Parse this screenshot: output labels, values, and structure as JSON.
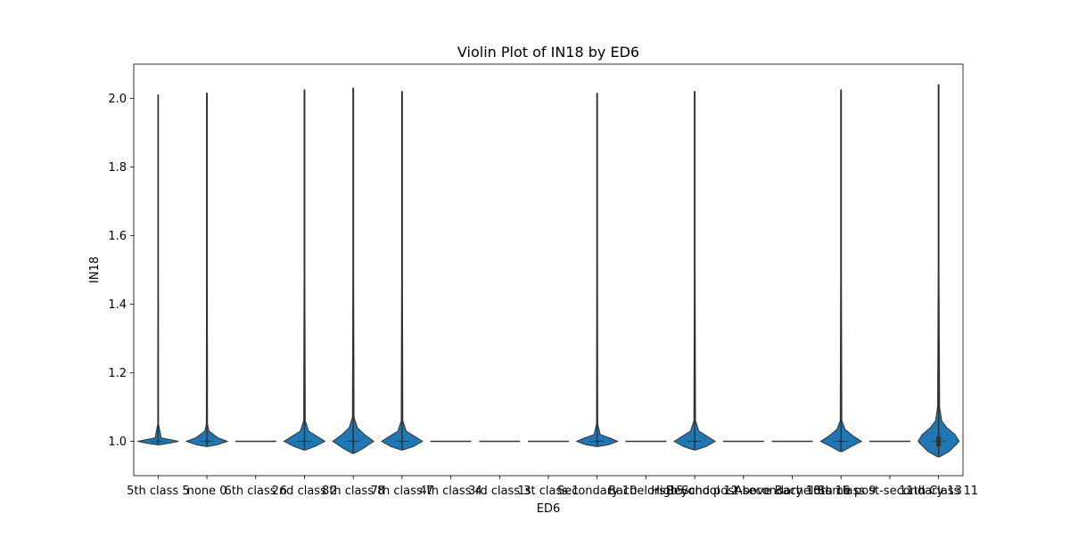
{
  "chart_data": {
    "type": "violin",
    "title": "Violin Plot of IN18 by ED6",
    "xlabel": "ED6",
    "ylabel": "IN18",
    "ylim": [
      0.9,
      2.1
    ],
    "yticks": [
      1.0,
      1.2,
      1.4,
      1.6,
      1.8,
      2.0
    ],
    "ytick_labels": [
      "1.0",
      "1.2",
      "1.4",
      "1.6",
      "1.8",
      "2.0"
    ],
    "grid": false,
    "legend": "none",
    "fill_color": "#1f77b4",
    "line_color": "#333333",
    "categories": [
      "5th class 5",
      "none 0",
      "6th class 6",
      "2nd class 2",
      "8th class 8",
      "7th class 7",
      "4th class 4",
      "3rd class 3",
      "1st class 1",
      "Secondary 10",
      "Bachelors 15",
      "High School 12",
      "Beyond post-secondary 13",
      "Above Bachelors 16",
      "10th class 9",
      "Some post-secondary 13",
      "11th Class 11"
    ],
    "violins": [
      {
        "category": "5th class 5",
        "ymin": 0.99,
        "ymax": 2.01,
        "median": 1.0,
        "q1": 1.0,
        "q3": 1.0,
        "density": [
          [
            0.99,
            0.05
          ],
          [
            0.995,
            0.6
          ],
          [
            1.0,
            1.0
          ],
          [
            1.005,
            0.6
          ],
          [
            1.01,
            0.15
          ],
          [
            1.05,
            0.02
          ],
          [
            1.5,
            0.015
          ],
          [
            2.01,
            0.015
          ]
        ]
      },
      {
        "category": "none 0",
        "ymin": 0.985,
        "ymax": 2.015,
        "median": 1.0,
        "q1": 1.0,
        "q3": 1.0,
        "density": [
          [
            0.985,
            0.05
          ],
          [
            0.99,
            0.5
          ],
          [
            1.0,
            1.0
          ],
          [
            1.01,
            0.55
          ],
          [
            1.03,
            0.1
          ],
          [
            1.05,
            0.03
          ],
          [
            1.5,
            0.02
          ],
          [
            2.015,
            0.02
          ]
        ]
      },
      {
        "category": "6th class 6",
        "ymin": 1.0,
        "ymax": 1.0,
        "median": 1.0,
        "q1": 1.0,
        "q3": 1.0,
        "density": []
      },
      {
        "category": "2nd class 2",
        "ymin": 0.975,
        "ymax": 2.025,
        "median": 1.0,
        "q1": 1.0,
        "q3": 1.0,
        "density": [
          [
            0.975,
            0.05
          ],
          [
            0.985,
            0.5
          ],
          [
            1.0,
            1.0
          ],
          [
            1.015,
            0.6
          ],
          [
            1.03,
            0.2
          ],
          [
            1.06,
            0.04
          ],
          [
            1.5,
            0.02
          ],
          [
            2.025,
            0.02
          ]
        ]
      },
      {
        "category": "8th class 8",
        "ymin": 0.965,
        "ymax": 2.03,
        "median": 1.0,
        "q1": 1.0,
        "q3": 1.0,
        "density": [
          [
            0.965,
            0.05
          ],
          [
            0.98,
            0.5
          ],
          [
            1.0,
            1.0
          ],
          [
            1.02,
            0.55
          ],
          [
            1.04,
            0.2
          ],
          [
            1.07,
            0.04
          ],
          [
            1.5,
            0.02
          ],
          [
            2.03,
            0.02
          ]
        ]
      },
      {
        "category": "7th class 7",
        "ymin": 0.975,
        "ymax": 2.02,
        "median": 1.0,
        "q1": 1.0,
        "q3": 1.0,
        "density": [
          [
            0.975,
            0.05
          ],
          [
            0.985,
            0.55
          ],
          [
            1.0,
            1.0
          ],
          [
            1.015,
            0.6
          ],
          [
            1.03,
            0.2
          ],
          [
            1.06,
            0.04
          ],
          [
            1.5,
            0.02
          ],
          [
            2.02,
            0.02
          ]
        ]
      },
      {
        "category": "4th class 4",
        "ymin": 1.0,
        "ymax": 1.0,
        "median": 1.0,
        "q1": 1.0,
        "q3": 1.0,
        "density": []
      },
      {
        "category": "3rd class 3",
        "ymin": 1.0,
        "ymax": 1.0,
        "median": 1.0,
        "q1": 1.0,
        "q3": 1.0,
        "density": []
      },
      {
        "category": "1st class 1",
        "ymin": 1.0,
        "ymax": 1.0,
        "median": 1.0,
        "q1": 1.0,
        "q3": 1.0,
        "density": []
      },
      {
        "category": "Secondary 10",
        "ymin": 0.985,
        "ymax": 2.015,
        "median": 1.0,
        "q1": 1.0,
        "q3": 1.0,
        "density": [
          [
            0.985,
            0.05
          ],
          [
            0.99,
            0.55
          ],
          [
            1.0,
            1.0
          ],
          [
            1.01,
            0.6
          ],
          [
            1.02,
            0.15
          ],
          [
            1.05,
            0.03
          ],
          [
            1.5,
            0.02
          ],
          [
            2.015,
            0.02
          ]
        ]
      },
      {
        "category": "Bachelors 15",
        "ymin": 1.0,
        "ymax": 1.0,
        "median": 1.0,
        "q1": 1.0,
        "q3": 1.0,
        "density": []
      },
      {
        "category": "High School 12",
        "ymin": 0.975,
        "ymax": 2.02,
        "median": 1.0,
        "q1": 1.0,
        "q3": 1.0,
        "density": [
          [
            0.975,
            0.05
          ],
          [
            0.985,
            0.55
          ],
          [
            1.0,
            1.0
          ],
          [
            1.015,
            0.6
          ],
          [
            1.03,
            0.2
          ],
          [
            1.06,
            0.04
          ],
          [
            1.5,
            0.02
          ],
          [
            2.02,
            0.02
          ]
        ]
      },
      {
        "category": "Beyond post-secondary 13",
        "ymin": 1.0,
        "ymax": 1.0,
        "median": 1.0,
        "q1": 1.0,
        "q3": 1.0,
        "density": []
      },
      {
        "category": "Above Bachelors 16",
        "ymin": 1.0,
        "ymax": 1.0,
        "median": 1.0,
        "q1": 1.0,
        "q3": 1.0,
        "density": []
      },
      {
        "category": "10th class 9",
        "ymin": 0.97,
        "ymax": 2.025,
        "median": 1.0,
        "q1": 1.0,
        "q3": 1.0,
        "density": [
          [
            0.97,
            0.05
          ],
          [
            0.985,
            0.5
          ],
          [
            1.0,
            1.0
          ],
          [
            1.015,
            0.6
          ],
          [
            1.035,
            0.2
          ],
          [
            1.06,
            0.04
          ],
          [
            1.5,
            0.02
          ],
          [
            2.025,
            0.02
          ]
        ]
      },
      {
        "category": "Some post-secondary 13",
        "ymin": 1.0,
        "ymax": 1.0,
        "median": 1.0,
        "q1": 1.0,
        "q3": 1.0,
        "density": []
      },
      {
        "category": "11th Class 11",
        "ymin": 0.955,
        "ymax": 2.04,
        "median": 1.0,
        "q1": 0.985,
        "q3": 1.015,
        "density": [
          [
            0.955,
            0.05
          ],
          [
            0.97,
            0.5
          ],
          [
            0.99,
            0.85
          ],
          [
            1.0,
            1.0
          ],
          [
            1.02,
            0.8
          ],
          [
            1.04,
            0.4
          ],
          [
            1.06,
            0.15
          ],
          [
            1.1,
            0.05
          ],
          [
            1.5,
            0.02
          ],
          [
            2.04,
            0.02
          ]
        ]
      }
    ]
  }
}
